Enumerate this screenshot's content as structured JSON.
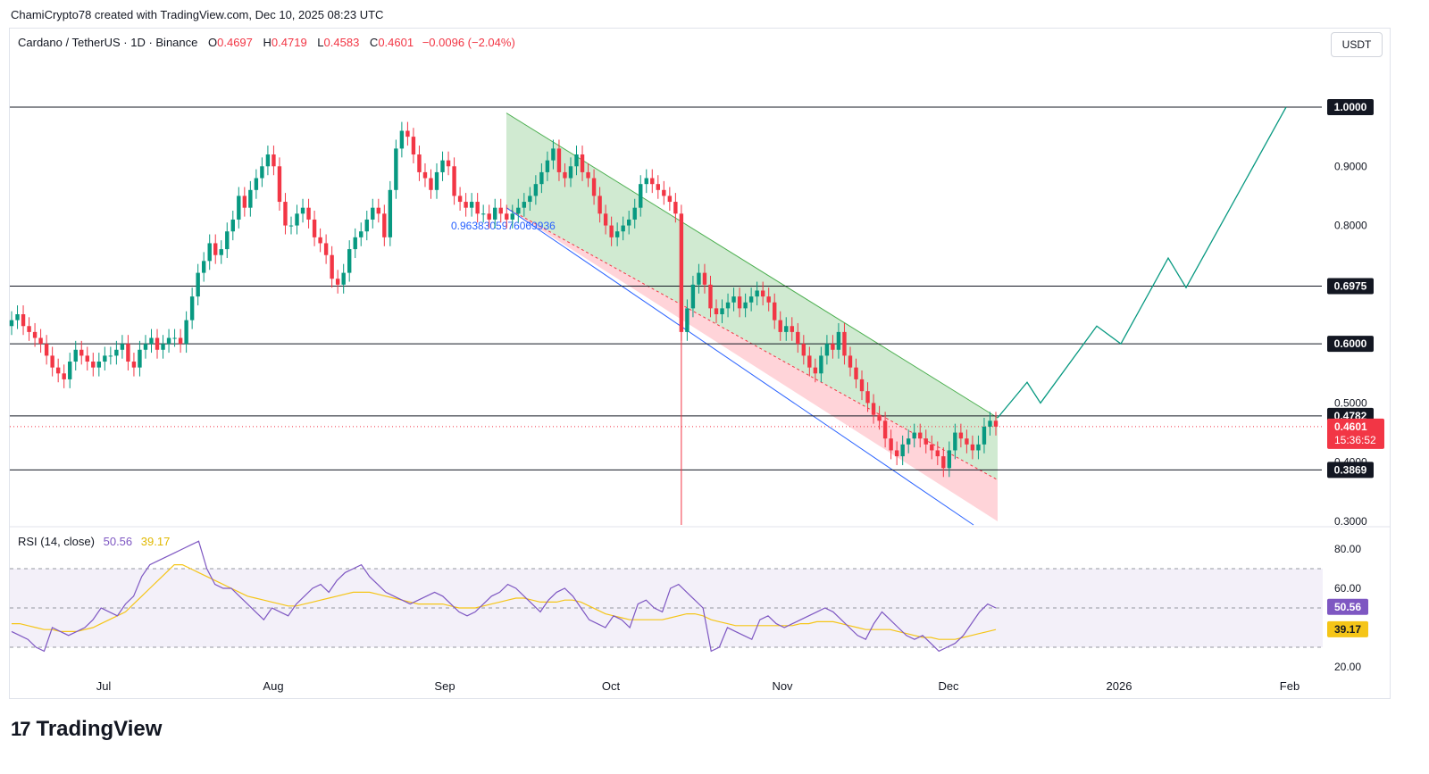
{
  "header": {
    "credit": "ChamiCrypto78 created with TradingView.com, Dec 10, 2025 08:23 UTC"
  },
  "legend": {
    "symbol": "Cardano / TetherUS · 1D · Binance",
    "o_label": "O",
    "o": "0.4697",
    "h_label": "H",
    "h": "0.4719",
    "l_label": "L",
    "l": "0.4583",
    "c_label": "C",
    "c": "0.4601",
    "change": "−0.0096 (−2.04%)"
  },
  "currency_button": "USDT",
  "rsi_legend": {
    "label": "RSI (14, close)",
    "rsi": "50.56",
    "ma": "39.17"
  },
  "annotation_label": "0.9638305976069936",
  "footer": {
    "brand": "TradingView"
  },
  "colors": {
    "up": "#089981",
    "down": "#f23645",
    "rsi": "#7e57c2",
    "rsi_ma": "#f5c518",
    "projection": "#089981",
    "channel_top": "#4caf50",
    "channel_bottom": "#2962ff",
    "channel_fill_green": "#c8e6c9",
    "channel_fill_red": "#ffcdd2"
  },
  "chart_data": {
    "type": "candlestick",
    "symbol": "ADAUSDT",
    "timeframe": "1D",
    "ylim": [
      0.28,
      1.02
    ],
    "x_ticks": [
      "Jul",
      "Aug",
      "Sep",
      "Oct",
      "Nov",
      "Dec",
      "2026",
      "Feb"
    ],
    "price_ticks": [
      "1.0000",
      "0.9000",
      "0.8000",
      "0.6975",
      "0.6000",
      "0.5000",
      "0.4782",
      "0.4601",
      "0.4000",
      "0.3869",
      "0.3000"
    ],
    "horizontal_levels": [
      1.0,
      0.6975,
      0.6,
      0.4782,
      0.3869
    ],
    "level_labels": [
      "1.0000",
      "0.6975",
      "0.6000",
      "0.4782",
      "0.3869"
    ],
    "last_price": {
      "value": "0.4601",
      "countdown": "15:36:52"
    },
    "candle_closes": [
      0.64,
      0.65,
      0.63,
      0.62,
      0.61,
      0.6,
      0.58,
      0.56,
      0.55,
      0.54,
      0.57,
      0.59,
      0.58,
      0.57,
      0.56,
      0.57,
      0.58,
      0.58,
      0.59,
      0.6,
      0.57,
      0.56,
      0.59,
      0.6,
      0.61,
      0.59,
      0.6,
      0.61,
      0.61,
      0.6,
      0.64,
      0.68,
      0.72,
      0.74,
      0.77,
      0.75,
      0.76,
      0.79,
      0.81,
      0.85,
      0.83,
      0.86,
      0.88,
      0.9,
      0.92,
      0.9,
      0.84,
      0.8,
      0.8,
      0.82,
      0.83,
      0.81,
      0.78,
      0.77,
      0.75,
      0.71,
      0.7,
      0.72,
      0.76,
      0.78,
      0.79,
      0.81,
      0.83,
      0.82,
      0.78,
      0.86,
      0.93,
      0.96,
      0.95,
      0.92,
      0.89,
      0.88,
      0.86,
      0.89,
      0.91,
      0.9,
      0.85,
      0.84,
      0.83,
      0.84,
      0.82,
      0.82,
      0.81,
      0.83,
      0.82,
      0.81,
      0.82,
      0.83,
      0.84,
      0.85,
      0.87,
      0.89,
      0.91,
      0.93,
      0.89,
      0.88,
      0.9,
      0.92,
      0.89,
      0.88,
      0.85,
      0.82,
      0.8,
      0.78,
      0.79,
      0.8,
      0.81,
      0.83,
      0.87,
      0.88,
      0.87,
      0.86,
      0.85,
      0.84,
      0.82,
      0.62,
      0.66,
      0.7,
      0.72,
      0.7,
      0.66,
      0.65,
      0.66,
      0.67,
      0.68,
      0.66,
      0.67,
      0.68,
      0.69,
      0.68,
      0.67,
      0.64,
      0.62,
      0.63,
      0.62,
      0.6,
      0.58,
      0.56,
      0.55,
      0.58,
      0.6,
      0.59,
      0.62,
      0.58,
      0.56,
      0.54,
      0.52,
      0.5,
      0.48,
      0.47,
      0.44,
      0.42,
      0.41,
      0.43,
      0.44,
      0.45,
      0.44,
      0.43,
      0.42,
      0.41,
      0.39,
      0.42,
      0.45,
      0.44,
      0.43,
      0.42,
      0.43,
      0.46,
      0.47,
      0.4601
    ],
    "channel": {
      "top_start": 0.99,
      "top_end": 0.475,
      "mid_start": 0.83,
      "mid_end": 0.37,
      "bottom_start": 0.83,
      "bottom_end": 0.3
    },
    "projection_path": [
      0.475,
      0.535,
      0.5,
      0.63,
      0.6,
      0.745,
      0.695,
      1.0
    ],
    "rsi": {
      "ylim": [
        18,
        90
      ],
      "ticks": [
        "80.00",
        "60.00",
        "40.00",
        "20.00"
      ],
      "overbought": 70,
      "oversold": 30,
      "mid": 50,
      "rsi_value": "50.56",
      "ma_value": "39.17",
      "rsi_values": [
        38,
        36,
        34,
        30,
        28,
        40,
        38,
        36,
        38,
        40,
        44,
        50,
        48,
        46,
        52,
        56,
        66,
        72,
        74,
        76,
        78,
        80,
        82,
        84,
        70,
        62,
        60,
        60,
        56,
        52,
        48,
        44,
        50,
        48,
        46,
        52,
        56,
        60,
        62,
        58,
        64,
        68,
        70,
        72,
        66,
        62,
        58,
        56,
        54,
        52,
        54,
        56,
        58,
        56,
        52,
        48,
        46,
        48,
        52,
        56,
        58,
        62,
        60,
        56,
        52,
        48,
        54,
        58,
        60,
        56,
        50,
        44,
        42,
        40,
        46,
        44,
        40,
        52,
        54,
        50,
        48,
        60,
        62,
        58,
        54,
        50,
        28,
        30,
        40,
        38,
        36,
        34,
        44,
        46,
        42,
        40,
        42,
        44,
        46,
        48,
        50,
        48,
        44,
        40,
        36,
        34,
        42,
        48,
        44,
        40,
        36,
        34,
        36,
        32,
        28,
        30,
        32,
        36,
        42,
        48,
        52,
        50
      ],
      "ma_values": [
        42,
        42,
        41,
        40,
        39,
        39,
        38,
        38,
        38,
        39,
        40,
        42,
        44,
        46,
        48,
        52,
        56,
        60,
        64,
        68,
        72,
        72,
        70,
        68,
        66,
        64,
        62,
        60,
        58,
        56,
        55,
        54,
        53,
        52,
        51,
        51,
        52,
        53,
        54,
        55,
        56,
        57,
        58,
        58,
        58,
        57,
        56,
        55,
        54,
        53,
        52,
        52,
        52,
        52,
        51,
        50,
        50,
        50,
        51,
        52,
        53,
        54,
        55,
        55,
        54,
        53,
        53,
        53,
        54,
        54,
        53,
        51,
        49,
        47,
        46,
        45,
        44,
        44,
        44,
        44,
        44,
        45,
        46,
        47,
        47,
        46,
        44,
        43,
        42,
        41,
        41,
        41,
        41,
        41,
        41,
        41,
        41,
        42,
        42,
        43,
        43,
        43,
        42,
        41,
        40,
        39,
        39,
        39,
        39,
        38,
        37,
        36,
        35,
        35,
        34,
        34,
        34,
        35,
        36,
        37,
        38,
        39
      ]
    }
  }
}
